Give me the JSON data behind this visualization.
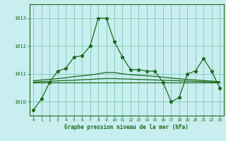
{
  "title": "Graphe pression niveau de la mer (hPa)",
  "background_color": "#c8eef0",
  "grid_color": "#88ccbb",
  "line_color": "#1a6b1a",
  "xlim": [
    -0.5,
    23.5
  ],
  "ylim": [
    1009.5,
    1013.5
  ],
  "yticks": [
    1010,
    1011,
    1012,
    1013
  ],
  "xticks": [
    0,
    1,
    2,
    3,
    4,
    5,
    6,
    7,
    8,
    9,
    10,
    11,
    12,
    13,
    14,
    15,
    16,
    17,
    18,
    19,
    20,
    21,
    22,
    23
  ],
  "series": [
    [
      1009.7,
      1010.1,
      1010.7,
      1011.1,
      1011.2,
      1011.6,
      1011.65,
      1012.0,
      1013.0,
      1013.0,
      1012.15,
      1011.6,
      1011.15,
      1011.15,
      1011.1,
      1011.1,
      1010.7,
      1010.0,
      1010.15,
      1011.0,
      1011.1,
      1011.55,
      1011.1,
      1010.5
    ],
    [
      1010.7,
      1010.7,
      1010.7,
      1010.7,
      1010.7,
      1010.7,
      1010.7,
      1010.7,
      1010.7,
      1010.7,
      1010.7,
      1010.7,
      1010.7,
      1010.7,
      1010.7,
      1010.7,
      1010.7,
      1010.7,
      1010.7,
      1010.7,
      1010.7,
      1010.7,
      1010.7,
      1010.7
    ],
    [
      1010.75,
      1010.78,
      1010.8,
      1010.83,
      1010.86,
      1010.9,
      1010.93,
      1010.96,
      1011.0,
      1011.05,
      1011.05,
      1011.0,
      1010.97,
      1010.95,
      1010.93,
      1010.91,
      1010.88,
      1010.85,
      1010.82,
      1010.8,
      1010.78,
      1010.76,
      1010.74,
      1010.72
    ],
    [
      1010.7,
      1010.72,
      1010.73,
      1010.75,
      1010.76,
      1010.77,
      1010.79,
      1010.8,
      1010.82,
      1010.83,
      1010.83,
      1010.82,
      1010.81,
      1010.8,
      1010.79,
      1010.78,
      1010.77,
      1010.76,
      1010.75,
      1010.74,
      1010.73,
      1010.72,
      1010.71,
      1010.7
    ]
  ]
}
